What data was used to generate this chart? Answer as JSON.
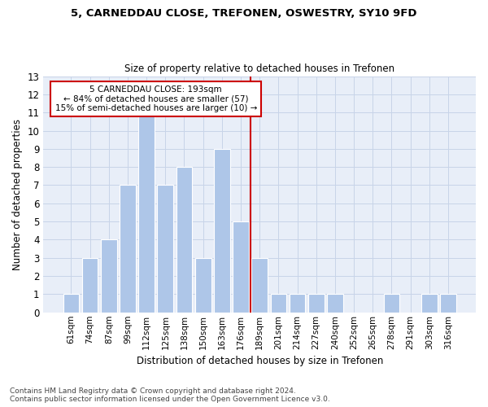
{
  "title1": "5, CARNEDDAU CLOSE, TREFONEN, OSWESTRY, SY10 9FD",
  "title2": "Size of property relative to detached houses in Trefonen",
  "xlabel": "Distribution of detached houses by size in Trefonen",
  "ylabel": "Number of detached properties",
  "categories": [
    "61sqm",
    "74sqm",
    "87sqm",
    "99sqm",
    "112sqm",
    "125sqm",
    "138sqm",
    "150sqm",
    "163sqm",
    "176sqm",
    "189sqm",
    "201sqm",
    "214sqm",
    "227sqm",
    "240sqm",
    "252sqm",
    "265sqm",
    "278sqm",
    "291sqm",
    "303sqm",
    "316sqm"
  ],
  "values": [
    1,
    3,
    4,
    7,
    11,
    7,
    8,
    3,
    9,
    5,
    3,
    1,
    1,
    1,
    1,
    0,
    0,
    1,
    0,
    1,
    1
  ],
  "bar_color": "#aec6e8",
  "grid_color": "#c8d4e8",
  "property_line_color": "#cc0000",
  "annotation_text": "5 CARNEDDAU CLOSE: 193sqm\n← 84% of detached houses are smaller (57)\n15% of semi-detached houses are larger (10) →",
  "annotation_box_color": "#cc0000",
  "ylim": [
    0,
    13
  ],
  "yticks": [
    0,
    1,
    2,
    3,
    4,
    5,
    6,
    7,
    8,
    9,
    10,
    11,
    12,
    13
  ],
  "footer": "Contains HM Land Registry data © Crown copyright and database right 2024.\nContains public sector information licensed under the Open Government Licence v3.0.",
  "bg_color": "#e8eef8"
}
